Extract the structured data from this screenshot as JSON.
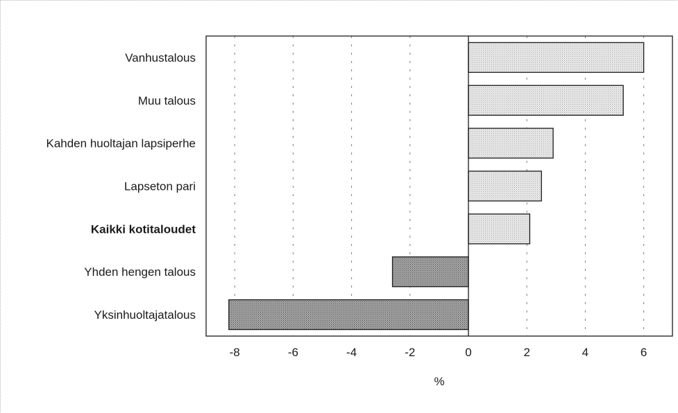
{
  "chart_data": {
    "type": "bar",
    "orientation": "horizontal",
    "categories": [
      "Vanhustalous",
      "Muu talous",
      "Kahden huoltajan lapsiperhe",
      "Lapseton pari",
      "Kaikki kotitaloudet",
      "Yhden hengen talous",
      "Yksinhuoltajatalous"
    ],
    "emphasized_category": "Kaikki kotitaloudet",
    "values": [
      6.0,
      5.3,
      2.9,
      2.5,
      2.1,
      -2.6,
      -8.2
    ],
    "xlabel": "%",
    "ylabel": "",
    "xlim": [
      -8.8,
      6.5
    ],
    "xticks": [
      -8,
      -6,
      -4,
      -2,
      0,
      2,
      4,
      6
    ],
    "xtick_labels": [
      "-8",
      "-6",
      "-4",
      "-2",
      "0",
      "2",
      "4",
      "6"
    ],
    "grid": "vertical dashed",
    "colors": {
      "positive": "#e4e4e4",
      "negative": "#9a9a9a",
      "outline": "#1a1a1a"
    }
  }
}
